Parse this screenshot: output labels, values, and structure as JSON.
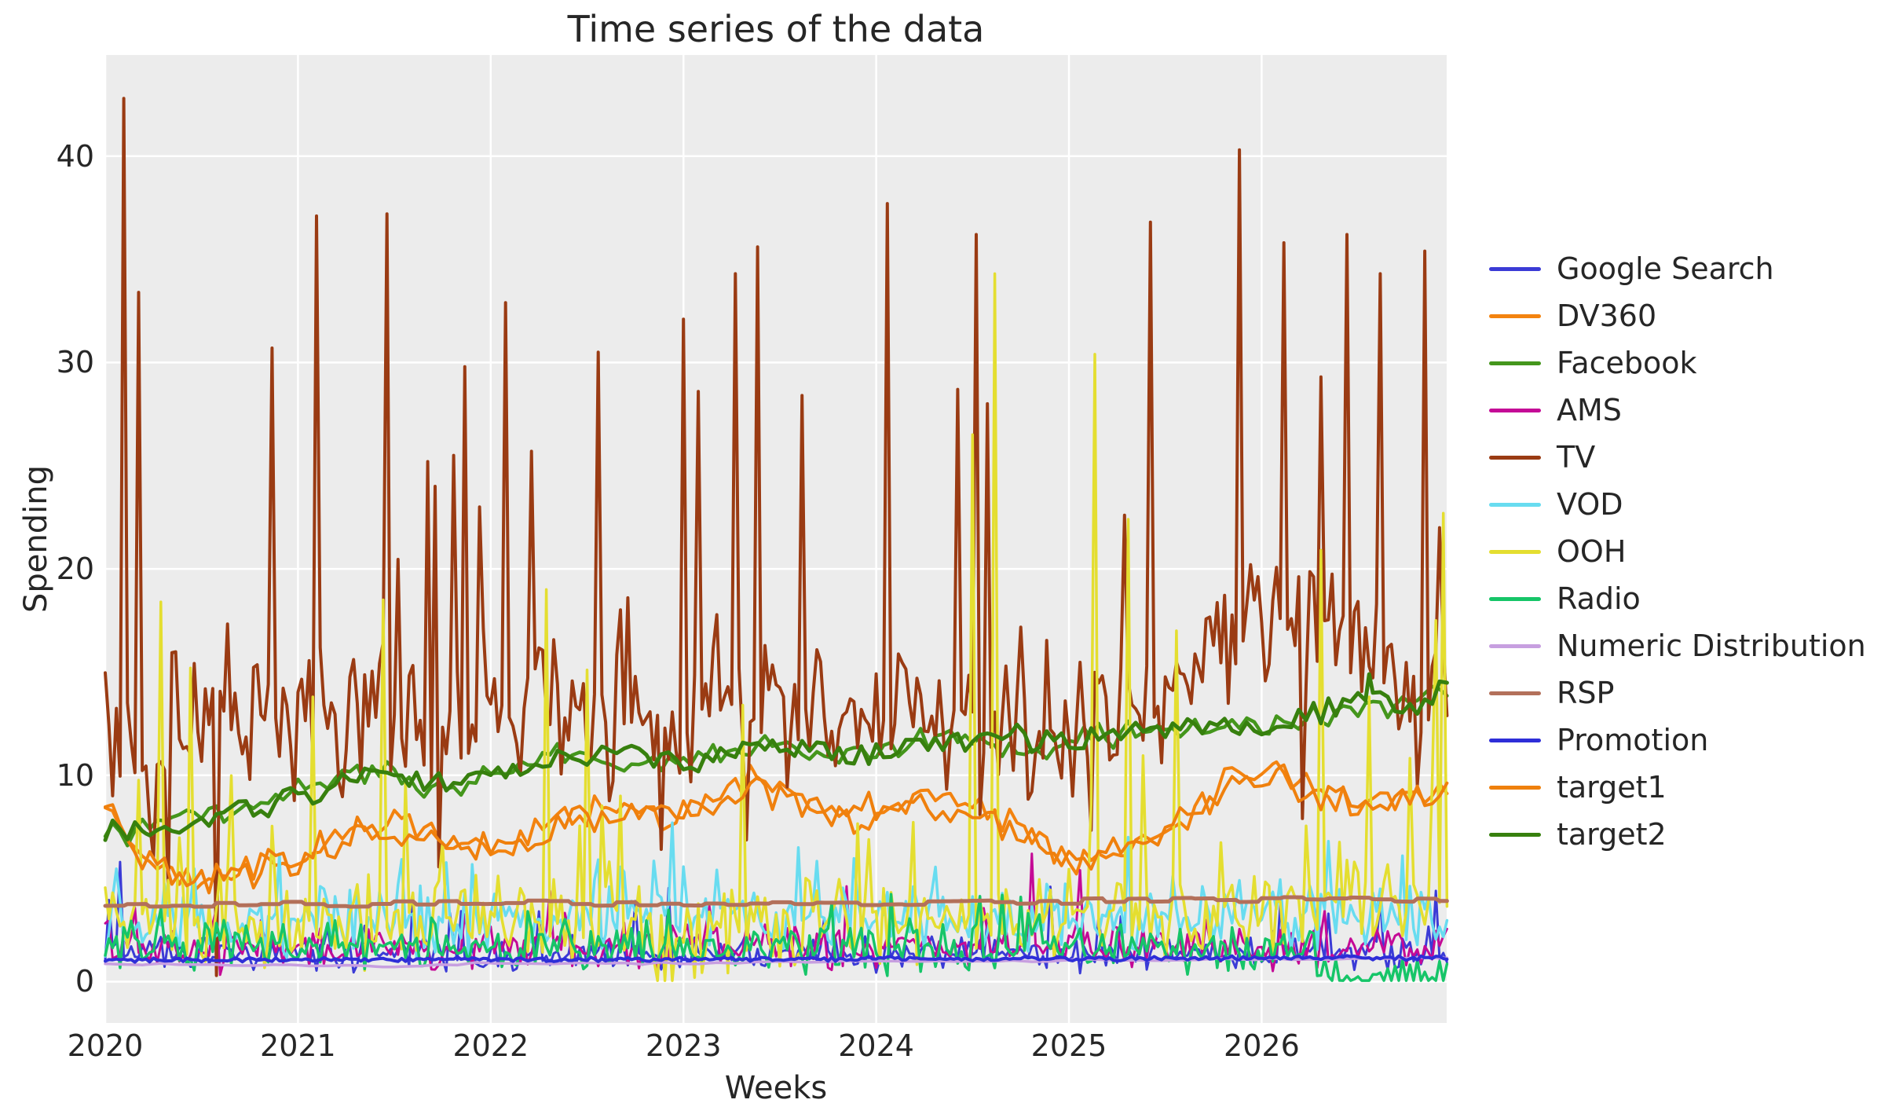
{
  "title": "Time series of the data",
  "xlabel": "Weeks",
  "ylabel": "Spending",
  "chart_data": {
    "type": "line",
    "title": "Time series of the data",
    "xlabel": "Weeks",
    "ylabel": "Spending",
    "x_unit": "decimal_years_weekly_samples",
    "x_range": [
      2020.0,
      2026.96
    ],
    "y_axis_range": [
      -2.0,
      44.9
    ],
    "x_ticks": [
      2020,
      2021,
      2022,
      2023,
      2024,
      2025,
      2026
    ],
    "y_ticks": [
      0,
      10,
      20,
      30,
      40
    ],
    "grid": true,
    "legend_position": "right-outside",
    "background_color": "#ececec",
    "grid_color": "#ffffff",
    "text_color": "#262626",
    "figure_background": "#ffffff",
    "seed": 42,
    "series": [
      {
        "name": "Google Search",
        "color": "#3b3bd6",
        "width": 3,
        "anchors": [
          [
            2020.0,
            1.3
          ],
          [
            2026.96,
            1.4
          ]
        ],
        "noise": 1.0,
        "smooth": 1,
        "spike": [
          0.05,
          2.5
        ],
        "clamp0": true,
        "peaks": [
          [
            2020.07,
            5.8
          ],
          [
            2021.6,
            4.2
          ],
          [
            2024.9,
            4.6
          ],
          [
            2026.9,
            4.4
          ]
        ]
      },
      {
        "name": "DV360",
        "color": "#f3830f",
        "width": 4,
        "anchors": [
          [
            2020.0,
            9.3
          ],
          [
            2020.15,
            6.5
          ],
          [
            2020.45,
            4.6
          ],
          [
            2020.7,
            5.2
          ],
          [
            2021.0,
            5.6
          ],
          [
            2021.3,
            7.2
          ],
          [
            2021.55,
            7.8
          ],
          [
            2021.8,
            6.8
          ],
          [
            2022.0,
            6.2
          ],
          [
            2022.3,
            7.5
          ],
          [
            2022.6,
            8.6
          ],
          [
            2022.85,
            7.9
          ],
          [
            2023.1,
            8.8
          ],
          [
            2023.35,
            9.7
          ],
          [
            2023.6,
            8.9
          ],
          [
            2023.9,
            7.8
          ],
          [
            2024.1,
            8.4
          ],
          [
            2024.35,
            9.2
          ],
          [
            2024.6,
            8.2
          ],
          [
            2024.85,
            6.9
          ],
          [
            2025.05,
            5.7
          ],
          [
            2025.3,
            6.3
          ],
          [
            2025.55,
            7.4
          ],
          [
            2025.8,
            9.6
          ],
          [
            2026.05,
            10.3
          ],
          [
            2026.3,
            9.4
          ],
          [
            2026.55,
            8.6
          ],
          [
            2026.8,
            8.9
          ],
          [
            2026.96,
            9.6
          ]
        ],
        "noise": 1.0,
        "smooth": 2,
        "clamp0": true,
        "peaks": []
      },
      {
        "name": "Facebook",
        "color": "#44961c",
        "width": 4.5,
        "anchors": [
          [
            2020.0,
            7.0
          ],
          [
            2020.3,
            7.8
          ],
          [
            2020.7,
            8.4
          ],
          [
            2021.0,
            9.3
          ],
          [
            2021.35,
            10.4
          ],
          [
            2021.7,
            9.2
          ],
          [
            2022.0,
            9.7
          ],
          [
            2022.4,
            11.0
          ],
          [
            2022.8,
            10.6
          ],
          [
            2023.4,
            11.4
          ],
          [
            2023.8,
            10.9
          ],
          [
            2024.4,
            11.9
          ],
          [
            2024.8,
            11.1
          ],
          [
            2025.0,
            11.6
          ],
          [
            2025.5,
            12.1
          ],
          [
            2026.0,
            12.3
          ],
          [
            2026.4,
            13.0
          ],
          [
            2026.7,
            13.4
          ],
          [
            2026.96,
            14.0
          ]
        ],
        "noise": 0.8,
        "smooth": 2,
        "clamp0": true,
        "peaks": []
      },
      {
        "name": "AMS",
        "color": "#c40a96",
        "width": 3,
        "anchors": [
          [
            2020.0,
            1.6
          ],
          [
            2026.96,
            1.7
          ]
        ],
        "noise": 1.3,
        "smooth": 1,
        "spike": [
          0.04,
          2.0
        ],
        "clamp0": true,
        "peaks": [
          [
            2022.3,
            4.4
          ],
          [
            2024.8,
            6.2
          ],
          [
            2025.05,
            5.4
          ]
        ]
      },
      {
        "name": "TV",
        "color": "#9a3b13",
        "width": 4,
        "anchors": [
          [
            2020.0,
            11.0
          ],
          [
            2021.0,
            13.0
          ],
          [
            2022.0,
            13.0
          ],
          [
            2023.0,
            13.0
          ],
          [
            2024.0,
            13.5
          ],
          [
            2024.7,
            11.5
          ],
          [
            2025.0,
            12.5
          ],
          [
            2025.6,
            15.0
          ],
          [
            2025.85,
            17.5
          ],
          [
            2026.0,
            17.5
          ],
          [
            2026.6,
            17.0
          ],
          [
            2026.96,
            13.0
          ]
        ],
        "noise": 4.5,
        "smooth": 1,
        "spike": [
          0.05,
          6.0
        ],
        "down": [
          0.07,
          6.0
        ],
        "clamp0": true,
        "peaks": [
          [
            2020.09,
            42.8
          ],
          [
            2020.18,
            33.4
          ],
          [
            2020.57,
            0.3
          ],
          [
            2020.86,
            30.7
          ],
          [
            2021.09,
            37.1
          ],
          [
            2021.46,
            37.2
          ],
          [
            2021.67,
            25.2
          ],
          [
            2021.72,
            24.0
          ],
          [
            2021.8,
            25.5
          ],
          [
            2021.87,
            29.8
          ],
          [
            2021.95,
            23.0
          ],
          [
            2022.07,
            32.9
          ],
          [
            2022.22,
            25.7
          ],
          [
            2022.55,
            30.5
          ],
          [
            2022.72,
            18.6
          ],
          [
            2023.0,
            32.1
          ],
          [
            2023.08,
            28.6
          ],
          [
            2023.27,
            34.3
          ],
          [
            2023.38,
            35.6
          ],
          [
            2023.62,
            28.4
          ],
          [
            2024.05,
            37.7
          ],
          [
            2024.42,
            28.7
          ],
          [
            2024.52,
            36.2
          ],
          [
            2024.58,
            28.0
          ],
          [
            2025.28,
            22.6
          ],
          [
            2025.42,
            36.8
          ],
          [
            2025.88,
            40.3
          ],
          [
            2026.12,
            35.8
          ],
          [
            2026.3,
            29.3
          ],
          [
            2026.45,
            36.2
          ],
          [
            2026.62,
            34.3
          ],
          [
            2026.85,
            35.4
          ],
          [
            2026.92,
            22.0
          ]
        ]
      },
      {
        "name": "VOD",
        "color": "#68dcf0",
        "width": 3.5,
        "anchors": [
          [
            2020.0,
            2.8
          ],
          [
            2023.0,
            3.2
          ],
          [
            2026.96,
            3.0
          ]
        ],
        "noise": 2.0,
        "smooth": 1,
        "spike": [
          0.08,
          3.0
        ],
        "clamp0": true,
        "peaks": [
          [
            2020.9,
            6.2
          ],
          [
            2022.95,
            7.7
          ],
          [
            2023.6,
            6.5
          ],
          [
            2025.3,
            7.0
          ],
          [
            2026.35,
            6.8
          ]
        ]
      },
      {
        "name": "OOH",
        "color": "#e4de30",
        "width": 3.5,
        "anchors": [
          [
            2020.0,
            3.2
          ],
          [
            2021.0,
            2.8
          ],
          [
            2022.0,
            3.0
          ],
          [
            2023.0,
            2.6
          ],
          [
            2024.0,
            2.8
          ],
          [
            2025.0,
            3.4
          ],
          [
            2026.0,
            3.2
          ],
          [
            2026.96,
            4.2
          ]
        ],
        "noise": 2.6,
        "smooth": 1,
        "spike": [
          0.06,
          7.0
        ],
        "clamp0": true,
        "peaks": [
          [
            2020.28,
            18.4
          ],
          [
            2020.45,
            15.2
          ],
          [
            2021.07,
            13.8
          ],
          [
            2021.44,
            18.5
          ],
          [
            2022.28,
            19.0
          ],
          [
            2022.5,
            15.1
          ],
          [
            2023.3,
            13.4
          ],
          [
            2024.5,
            26.5
          ],
          [
            2024.62,
            34.3
          ],
          [
            2025.13,
            30.4
          ],
          [
            2025.3,
            22.4
          ],
          [
            2025.55,
            17.0
          ],
          [
            2026.3,
            20.9
          ],
          [
            2026.55,
            13.8
          ],
          [
            2026.9,
            17.5
          ],
          [
            2026.95,
            22.7
          ],
          [
            2022.86,
            0.05
          ],
          [
            2022.9,
            0.05
          ],
          [
            2022.94,
            0.05
          ]
        ]
      },
      {
        "name": "Radio",
        "color": "#16c568",
        "width": 3.5,
        "anchors": [
          [
            2020.0,
            1.9
          ],
          [
            2022.0,
            1.8
          ],
          [
            2024.0,
            1.7
          ],
          [
            2026.2,
            1.6
          ],
          [
            2026.35,
            0.2
          ],
          [
            2026.96,
            0.2
          ]
        ],
        "noise": 1.5,
        "smooth": 1,
        "spike": [
          0.05,
          2.5
        ],
        "clamp0": true,
        "peaks": []
      },
      {
        "name": "Numeric Distribution",
        "color": "#c79fe0",
        "width": 3.5,
        "anchors": [
          [
            2020.0,
            0.85
          ],
          [
            2021.0,
            0.8
          ],
          [
            2021.5,
            0.7
          ],
          [
            2022.0,
            0.9
          ],
          [
            2023.0,
            0.88
          ],
          [
            2024.0,
            1.0
          ],
          [
            2025.0,
            1.02
          ],
          [
            2026.0,
            1.08
          ],
          [
            2026.96,
            1.15
          ]
        ],
        "noise": 0.07,
        "smooth": 5,
        "peaks": []
      },
      {
        "name": "RSP",
        "color": "#b3705a",
        "width": 5,
        "anchors": [
          [
            2020.0,
            3.7
          ],
          [
            2021.0,
            3.75
          ],
          [
            2022.0,
            3.8
          ],
          [
            2023.0,
            3.82
          ],
          [
            2024.0,
            3.78
          ],
          [
            2025.0,
            3.9
          ],
          [
            2026.0,
            4.0
          ],
          [
            2026.96,
            3.92
          ]
        ],
        "noise": 0.15,
        "smooth": 6,
        "hold": true,
        "peaks": []
      },
      {
        "name": "Promotion",
        "color": "#2e2ed8",
        "width": 4,
        "anchors": [
          [
            2020.0,
            1.05
          ],
          [
            2026.96,
            1.15
          ]
        ],
        "noise": 0.13,
        "smooth": 1,
        "peaks": []
      },
      {
        "name": "target1",
        "color": "#ef800d",
        "width": 4,
        "anchors": [
          [
            2020.0,
            8.6
          ],
          [
            2020.2,
            6.0
          ],
          [
            2020.5,
            4.9
          ],
          [
            2021.0,
            5.9
          ],
          [
            2021.4,
            7.5
          ],
          [
            2021.8,
            6.5
          ],
          [
            2022.2,
            7.0
          ],
          [
            2022.6,
            8.2
          ],
          [
            2023.0,
            8.3
          ],
          [
            2023.4,
            9.3
          ],
          [
            2023.8,
            8.0
          ],
          [
            2024.2,
            8.8
          ],
          [
            2024.6,
            7.9
          ],
          [
            2025.0,
            5.9
          ],
          [
            2025.4,
            6.7
          ],
          [
            2025.8,
            9.2
          ],
          [
            2026.1,
            9.9
          ],
          [
            2026.5,
            8.4
          ],
          [
            2026.96,
            9.3
          ]
        ],
        "noise": 1.0,
        "smooth": 2,
        "clamp0": true,
        "peaks": []
      },
      {
        "name": "target2",
        "color": "#37800e",
        "width": 5,
        "anchors": [
          [
            2020.0,
            7.4
          ],
          [
            2020.2,
            6.9
          ],
          [
            2020.5,
            7.9
          ],
          [
            2021.0,
            9.0
          ],
          [
            2021.4,
            10.2
          ],
          [
            2021.8,
            9.4
          ],
          [
            2022.2,
            10.4
          ],
          [
            2022.6,
            11.2
          ],
          [
            2023.0,
            10.7
          ],
          [
            2023.4,
            11.5
          ],
          [
            2023.8,
            11.0
          ],
          [
            2024.2,
            11.6
          ],
          [
            2024.6,
            11.9
          ],
          [
            2025.0,
            11.7
          ],
          [
            2025.4,
            12.2
          ],
          [
            2025.8,
            12.1
          ],
          [
            2026.2,
            12.8
          ],
          [
            2026.5,
            13.6
          ],
          [
            2026.8,
            13.4
          ],
          [
            2026.96,
            14.4
          ]
        ],
        "noise": 0.8,
        "smooth": 2,
        "peaks": [
          [
            2026.55,
            14.9
          ]
        ]
      }
    ]
  }
}
